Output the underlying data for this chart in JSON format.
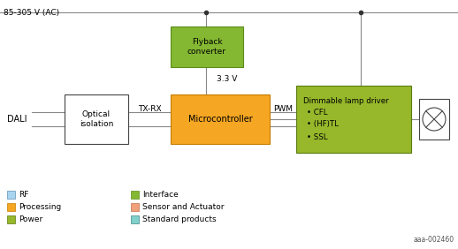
{
  "title": "85-305 V (AC)",
  "ref_code": "aaa-002460",
  "colors": {
    "flyback_fill": "#84b832",
    "flyback_edge": "#5a8c1a",
    "dimmable_fill": "#96b82a",
    "dimmable_edge": "#5a7a10",
    "mc_fill": "#f5a623",
    "mc_edge": "#c47d00",
    "optical_fill": "#ffffff",
    "optical_edge": "#444444",
    "line_color": "#888888",
    "dot_color": "#333333"
  },
  "legend_col1": [
    {
      "label": "RF",
      "fc": "#a8d4f0",
      "ec": "#6090b0"
    },
    {
      "label": "Processing",
      "fc": "#f5a623",
      "ec": "#c47d00"
    },
    {
      "label": "Power",
      "fc": "#96b82a",
      "ec": "#5a7a10"
    }
  ],
  "legend_col2": [
    {
      "label": "Interface",
      "fc": "#84b832",
      "ec": "#5a8c1a"
    },
    {
      "label": "Sensor and Actuator",
      "fc": "#f0a07a",
      "ec": "#c07050"
    },
    {
      "label": "Standard products",
      "fc": "#80d0cc",
      "ec": "#408888"
    }
  ]
}
